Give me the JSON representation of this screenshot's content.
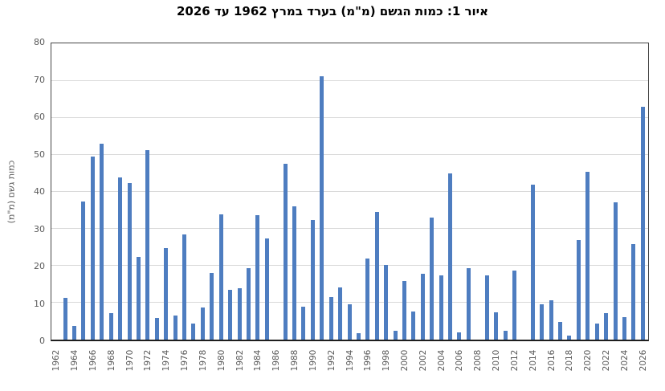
{
  "chart": {
    "title": "איור 1: כמות הגשם (מ\"מ) בערד במרץ 1962 עד 2026",
    "y_axis_title": "כמות גשם (מ\"מ)"
  },
  "chart_data": {
    "type": "bar",
    "title": "איור 1: כמות הגשם (מ\"מ) בערד במרץ 1962 עד 2026",
    "xlabel": "",
    "ylabel": "כמות גשם (מ\"מ)",
    "ylim": [
      0,
      80
    ],
    "yticks": [
      0,
      10,
      20,
      30,
      40,
      50,
      60,
      70,
      80
    ],
    "x_tick_interval": 2,
    "grid": true,
    "legend": "none",
    "bar_color": "#4e7dc0",
    "axis_label_color": "#595959",
    "gridline_color": "#d9d9d9",
    "categories": [
      1962,
      1963,
      1964,
      1965,
      1966,
      1967,
      1968,
      1969,
      1970,
      1971,
      1972,
      1973,
      1974,
      1975,
      1976,
      1977,
      1978,
      1979,
      1980,
      1981,
      1982,
      1983,
      1984,
      1985,
      1986,
      1987,
      1988,
      1989,
      1990,
      1991,
      1992,
      1993,
      1994,
      1995,
      1996,
      1997,
      1998,
      1999,
      2000,
      2001,
      2002,
      2003,
      2004,
      2005,
      2006,
      2007,
      2008,
      2009,
      2010,
      2011,
      2012,
      2013,
      2014,
      2015,
      2016,
      2017,
      2018,
      2019,
      2020,
      2021,
      2022,
      2023,
      2024,
      2025,
      2026
    ],
    "values": [
      null,
      11.3,
      3.6,
      37.3,
      49.5,
      53.0,
      7.2,
      44.0,
      42.3,
      22.3,
      51.2,
      5.8,
      24.7,
      6.5,
      28.5,
      4.4,
      8.7,
      18.0,
      34.0,
      13.4,
      14.0,
      19.4,
      33.8,
      27.3,
      null,
      47.6,
      36.0,
      9.0,
      32.4,
      71.3,
      11.5,
      14.2,
      9.6,
      1.7,
      21.9,
      34.5,
      20.2,
      2.4,
      15.8,
      7.6,
      17.8,
      33.1,
      17.5,
      45.0,
      1.9,
      19.3,
      null,
      17.3,
      7.4,
      2.5,
      18.8,
      null,
      42.0,
      9.6,
      10.7,
      4.8,
      1.1,
      27.0,
      45.5,
      4.4,
      7.1,
      37.2,
      6.1,
      25.8,
      63.0
    ]
  }
}
